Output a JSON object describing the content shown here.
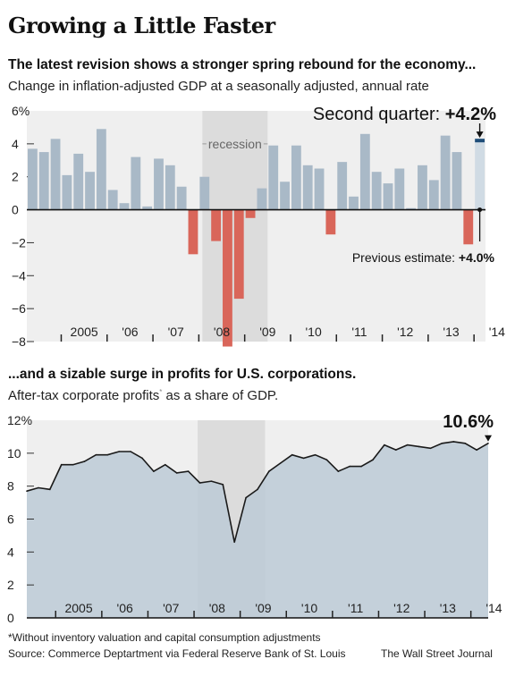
{
  "title": "Growing a Little Faster",
  "chart1_header": "The latest revision shows a stronger spring rebound for the economy...",
  "chart1_subtitle": "Change in inflation-adjusted GDP at a seasonally adjusted, annual rate",
  "chart2_header": "...and a sizable surge in profits for U.S. corporations.",
  "chart2_subtitle": "After-tax corporate profits",
  "chart2_subtitle_mark": "*",
  "chart2_subtitle_tail": " as a share of GDP.",
  "footnote": "*Without inventory valuation and capital consumption adjustments",
  "source": "Source: Commerce Deptartment via Federal Reserve Bank of St. Louis",
  "credit": "The Wall Street Journal",
  "colors": {
    "positive": "#a9b9c7",
    "negative": "#d9665a",
    "recession": "#dcdcdc",
    "panel": "#efefef",
    "area": "#bccad6",
    "line": "#1a1a1a",
    "highlight_bar": "#d0dbe4",
    "marker": "#1f4e79"
  },
  "chart_data": [
    {
      "type": "bar",
      "title": "Change in inflation-adjusted GDP at a seasonally adjusted, annual rate",
      "ylabel": "%",
      "ylim": [
        -8,
        6
      ],
      "y_ticks": [
        "6%",
        "4",
        "2",
        "0",
        "−2",
        "−4",
        "−6",
        "−8"
      ],
      "x_tick_labels": [
        "2005",
        "'06",
        "'07",
        "'08",
        "'09",
        "'10",
        "'11",
        "'12",
        "'13",
        "'14"
      ],
      "quarters_start": "2004Q2",
      "values": [
        3.7,
        3.5,
        4.3,
        2.1,
        3.4,
        2.3,
        4.9,
        1.2,
        0.4,
        3.2,
        0.2,
        3.1,
        2.7,
        1.4,
        -2.7,
        2.0,
        -1.9,
        -8.3,
        -5.4,
        -0.5,
        1.3,
        3.9,
        1.7,
        3.9,
        2.7,
        2.5,
        -1.5,
        2.9,
        0.8,
        4.6,
        2.3,
        1.6,
        2.5,
        0.1,
        2.7,
        1.8,
        4.5,
        3.5,
        -2.1,
        4.2
      ],
      "recession": {
        "from": "2008Q1",
        "to": "2009Q2",
        "label": "recession"
      },
      "annotations": [
        {
          "label": "Second quarter: ",
          "value": "+4.2%"
        },
        {
          "label": "Previous estimate: ",
          "value": "+4.0%"
        }
      ],
      "previous_estimate": 4.0
    },
    {
      "type": "area",
      "title": "After-tax corporate profits as a share of GDP",
      "ylabel": "%",
      "ylim": [
        0,
        12
      ],
      "y_ticks": [
        "12%",
        "10",
        "8",
        "6",
        "4",
        "2",
        "0"
      ],
      "x_tick_labels": [
        "2005",
        "'06",
        "'07",
        "'08",
        "'09",
        "'10",
        "'11",
        "'12",
        "'13",
        "'14"
      ],
      "quarters_start": "2004Q2",
      "values": [
        7.7,
        7.9,
        7.8,
        9.3,
        9.3,
        9.5,
        9.9,
        9.9,
        10.1,
        10.1,
        9.7,
        8.9,
        9.3,
        8.8,
        8.9,
        8.2,
        8.3,
        8.1,
        4.6,
        7.3,
        7.8,
        8.9,
        9.4,
        9.9,
        9.7,
        9.9,
        9.6,
        8.9,
        9.2,
        9.2,
        9.6,
        10.5,
        10.2,
        10.5,
        10.4,
        10.3,
        10.6,
        10.7,
        10.6,
        10.2,
        10.6
      ],
      "recession": {
        "from": "2008Q1",
        "to": "2009Q2"
      },
      "annotation": "10.6%"
    }
  ]
}
